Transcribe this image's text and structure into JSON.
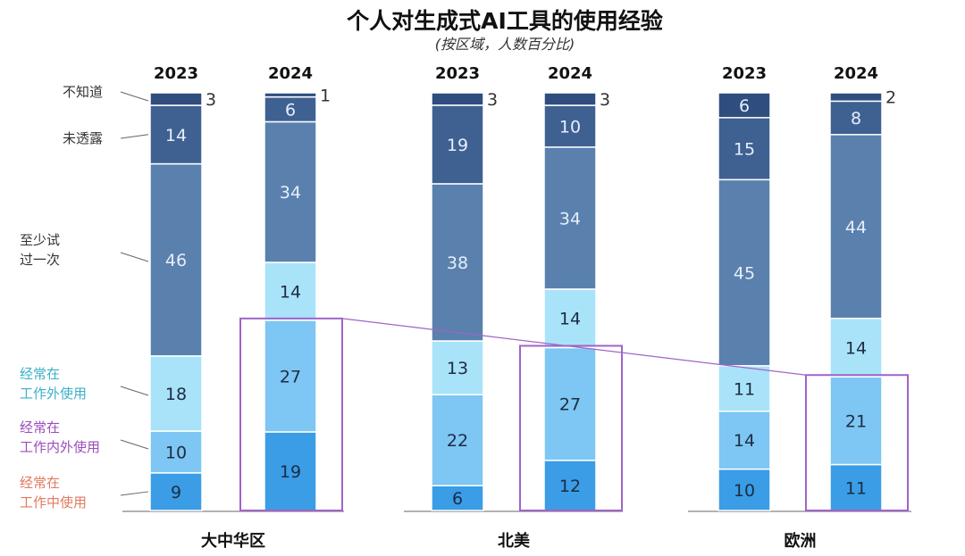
{
  "chart_data": {
    "type": "bar",
    "stacked": true,
    "title": "个人对生成式AI工具的使用经验",
    "subtitle": "(按区域，人数百分比)",
    "groups": [
      "大中华区",
      "北美",
      "欧洲"
    ],
    "years": [
      "2023",
      "2024"
    ],
    "series": [
      {
        "name": "经常在工作中使用",
        "name_lines": [
          "经常在",
          "工作中使用"
        ],
        "color": "#3a9de6",
        "label_color": "#e07a5f",
        "values": [
          [
            9,
            19
          ],
          [
            6,
            12
          ],
          [
            10,
            11
          ]
        ]
      },
      {
        "name": "经常在工作内外使用",
        "name_lines": [
          "经常在",
          "工作内外使用"
        ],
        "color": "#7ec6f3",
        "label_color": "#9b4dbb",
        "values": [
          [
            10,
            27
          ],
          [
            22,
            27
          ],
          [
            14,
            21
          ]
        ]
      },
      {
        "name": "经常在工作外使用",
        "name_lines": [
          "经常在",
          "工作外使用"
        ],
        "color": "#a9e3f9",
        "label_color": "#3bb0c9",
        "values": [
          [
            18,
            14
          ],
          [
            13,
            14
          ],
          [
            11,
            14
          ]
        ]
      },
      {
        "name": "至少试过一次",
        "name_lines": [
          "至少试",
          "过一次"
        ],
        "color": "#5a80ad",
        "label_color": "#333333",
        "values": [
          [
            46,
            34
          ],
          [
            38,
            34
          ],
          [
            45,
            44
          ]
        ]
      },
      {
        "name": "未透露",
        "name_lines": [
          "未透露"
        ],
        "color": "#3e6192",
        "label_color": "#333333",
        "values": [
          [
            14,
            6
          ],
          [
            19,
            10
          ],
          [
            15,
            8
          ]
        ]
      },
      {
        "name": "不知道",
        "name_lines": [
          "不知道"
        ],
        "color": "#2f4e7f",
        "label_color": "#333333",
        "values": [
          [
            3,
            1
          ],
          [
            3,
            3
          ],
          [
            6,
            2
          ]
        ]
      }
    ],
    "highlight_color": "#a064c8",
    "highlight": "2024 bars, bottom two segments"
  }
}
